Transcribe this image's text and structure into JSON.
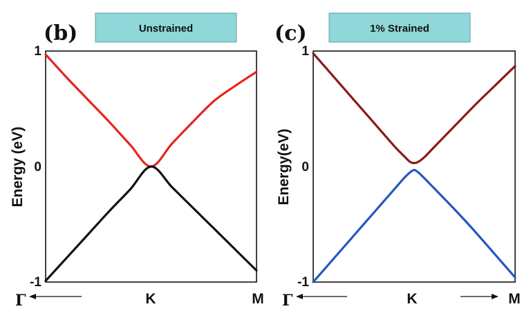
{
  "chart_data": [
    {
      "type": "line",
      "panel_label": "(b)",
      "title": "Unstrained",
      "ylabel": "Energy (eV)",
      "ylim": [
        -1,
        1
      ],
      "yticks": [
        "-1",
        "0",
        "1"
      ],
      "xticks": [
        "Γ",
        "K",
        "M"
      ],
      "x_arrows": [
        "left"
      ],
      "series": [
        {
          "color": "#e8231c",
          "x": [
            0,
            0.1,
            0.2,
            0.3,
            0.4,
            0.5,
            0.6,
            0.7,
            0.8,
            0.9,
            1.0
          ],
          "y": [
            0.97,
            0.77,
            0.58,
            0.39,
            0.19,
            0.0,
            0.2,
            0.39,
            0.57,
            0.7,
            0.82
          ]
        },
        {
          "color": "#111111",
          "x": [
            0,
            0.1,
            0.2,
            0.3,
            0.4,
            0.5,
            0.6,
            0.7,
            0.8,
            0.9,
            1.0
          ],
          "y": [
            -0.99,
            -0.79,
            -0.59,
            -0.39,
            -0.2,
            0.0,
            -0.18,
            -0.36,
            -0.54,
            -0.72,
            -0.9
          ]
        }
      ]
    },
    {
      "type": "line",
      "panel_label": "(c)",
      "title": "1% Strained",
      "ylabel": "Energy(eV)",
      "ylim": [
        -1,
        1
      ],
      "yticks": [
        "-1",
        "0",
        "1"
      ],
      "xticks": [
        "Γ",
        "K",
        "M"
      ],
      "x_arrows": [
        "left",
        "right"
      ],
      "series": [
        {
          "color": "#8b1a1a",
          "x": [
            0,
            0.1,
            0.2,
            0.3,
            0.4,
            0.45,
            0.48,
            0.5,
            0.52,
            0.55,
            0.6,
            0.7,
            0.8,
            0.9,
            1.0
          ],
          "y": [
            0.98,
            0.78,
            0.58,
            0.38,
            0.18,
            0.09,
            0.04,
            0.03,
            0.04,
            0.08,
            0.17,
            0.35,
            0.53,
            0.7,
            0.87
          ]
        },
        {
          "color": "#2356c4",
          "x": [
            0,
            0.1,
            0.2,
            0.3,
            0.4,
            0.45,
            0.48,
            0.5,
            0.52,
            0.55,
            0.6,
            0.7,
            0.8,
            0.9,
            1.0
          ],
          "y": [
            -1.0,
            -0.8,
            -0.6,
            -0.4,
            -0.2,
            -0.1,
            -0.05,
            -0.03,
            -0.05,
            -0.1,
            -0.19,
            -0.37,
            -0.56,
            -0.76,
            -0.96
          ]
        }
      ]
    }
  ]
}
